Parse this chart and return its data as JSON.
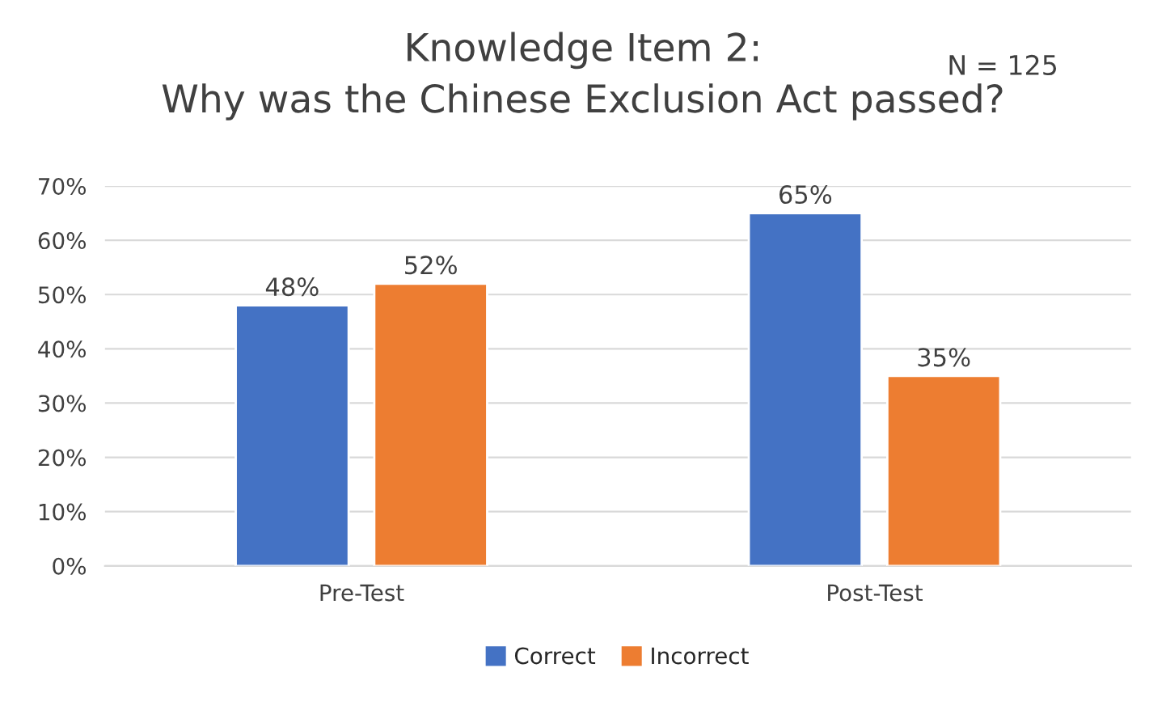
{
  "chart_data": {
    "type": "bar",
    "title": "Knowledge Item 2:\nWhy was the Chinese Exclusion Act passed?",
    "annotations": [
      "N = 125"
    ],
    "categories": [
      "Pre-Test",
      "Post-Test"
    ],
    "series": [
      {
        "name": "Correct",
        "color": "#4472c4",
        "values": [
          48,
          65
        ],
        "value_labels": [
          "48%",
          "65%"
        ]
      },
      {
        "name": "Incorrect",
        "color": "#ed7d31",
        "values": [
          52,
          35
        ],
        "value_labels": [
          "52%",
          "35%"
        ]
      }
    ],
    "ylim": [
      0,
      70
    ],
    "yticks": [
      {
        "value": 0,
        "label": "0%"
      },
      {
        "value": 10,
        "label": "10%"
      },
      {
        "value": 20,
        "label": "20%"
      },
      {
        "value": 30,
        "label": "30%"
      },
      {
        "value": 40,
        "label": "40%"
      },
      {
        "value": 50,
        "label": "50%"
      },
      {
        "value": 60,
        "label": "60%"
      },
      {
        "value": 70,
        "label": "70%"
      }
    ],
    "grid": "y",
    "legend": "bottom"
  }
}
